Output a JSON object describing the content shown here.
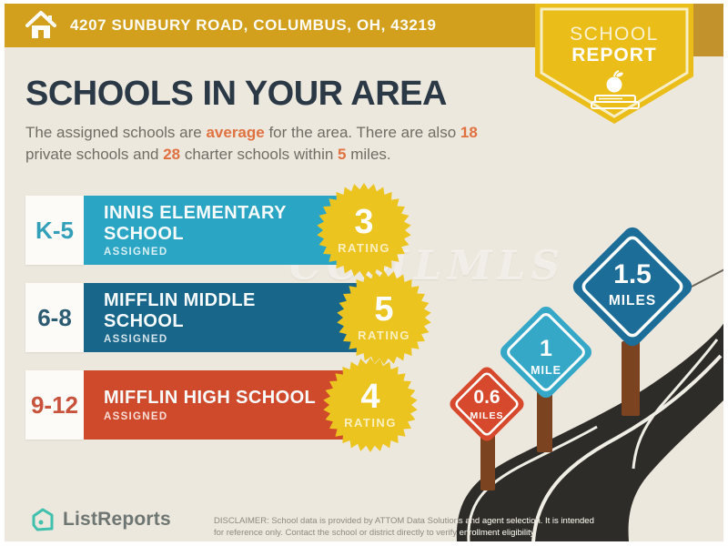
{
  "banner": {
    "address": "4207 SUNBURY ROAD, COLUMBUS, OH, 43219"
  },
  "badge": {
    "line1": "SCHOOL",
    "line2": "REPORT"
  },
  "header": {
    "title": "SCHOOLS IN YOUR AREA",
    "intro": [
      {
        "text": "The assigned schools are ",
        "highlight": false
      },
      {
        "text": "average",
        "highlight": true
      },
      {
        "text": " for the area. There are also ",
        "highlight": false
      },
      {
        "text": "18",
        "highlight": true
      },
      {
        "text": " private schools and ",
        "highlight": false
      },
      {
        "text": "28",
        "highlight": true
      },
      {
        "text": " charter schools within ",
        "highlight": false
      },
      {
        "text": "5",
        "highlight": true
      },
      {
        "text": " miles.",
        "highlight": false
      }
    ]
  },
  "schools": [
    {
      "grades": "K-5",
      "name": "INNIS ELEMENTARY SCHOOL",
      "status": "ASSIGNED",
      "rating": "3",
      "rating_label": "RATING",
      "bar_color": "#2BA5C4",
      "grade_color": "#33A0BA"
    },
    {
      "grades": "6-8",
      "name": "MIFFLIN MIDDLE SCHOOL",
      "status": "ASSIGNED",
      "rating": "5",
      "rating_label": "RATING",
      "bar_color": "#186689",
      "grade_color": "#2C5B72"
    },
    {
      "grades": "9-12",
      "name": "MIFFLIN HIGH SCHOOL",
      "status": "ASSIGNED",
      "rating": "4",
      "rating_label": "RATING",
      "bar_color": "#CF4A2B",
      "grade_color": "#C8523B"
    }
  ],
  "signs": [
    {
      "value": "0.6",
      "unit": "MILES",
      "color": "#D7492C"
    },
    {
      "value": "1",
      "unit": "MILE",
      "color": "#35A8C8"
    },
    {
      "value": "1.5",
      "unit": "MILES",
      "color": "#1D6D99"
    }
  ],
  "watermark": "CCMLMLS",
  "footer": {
    "logo_text": "ListReports",
    "disclaimer_line1": "DISCLAIMER: School data is provided by ATTOM Data Solutions and agent selection. It is intended",
    "disclaimer_line2": "for reference only. Contact the school or district directly to verify enrollment eligibility."
  },
  "colors": {
    "banner_gold": "#D2A01C",
    "badge_gold": "#EABD18",
    "background_cream": "#EDE8DD",
    "accent_orange": "#E07140",
    "starburst_gold": "#ECC41F",
    "road_dark": "#2E2C29",
    "post_brown": "#7B431F",
    "logo_teal": "#41C0AE"
  }
}
